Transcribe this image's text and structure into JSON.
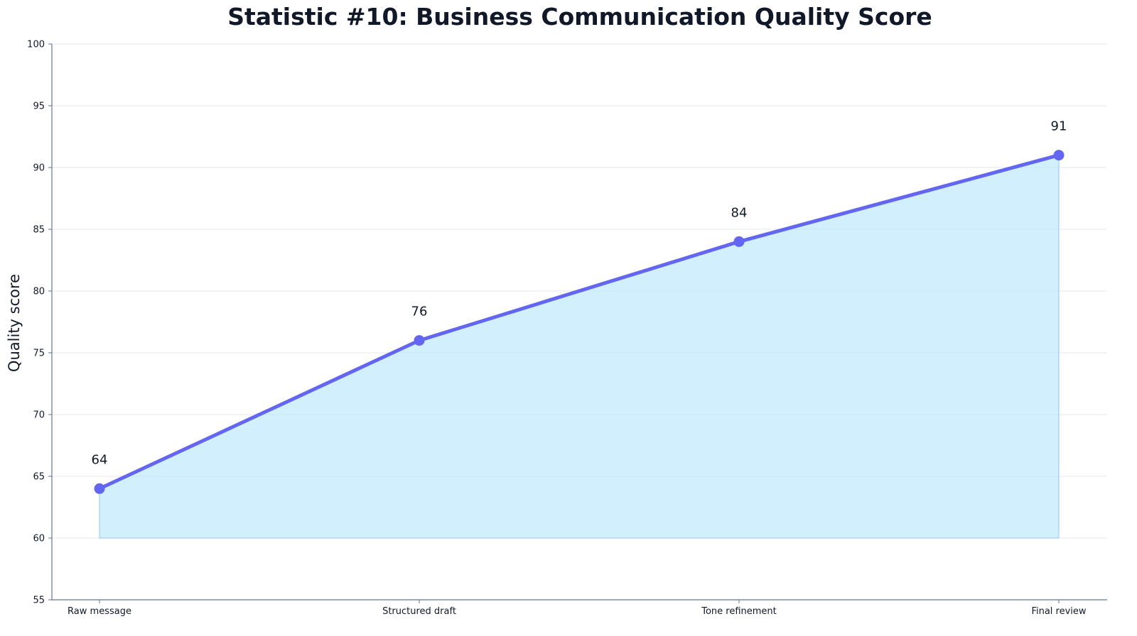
{
  "chart_data": {
    "type": "line",
    "title": "Statistic #10: Business Communication Quality Score",
    "xlabel": "",
    "ylabel": "Quality score",
    "categories": [
      "Raw message",
      "Structured draft",
      "Tone refinement",
      "Final review"
    ],
    "series": [
      {
        "values": [
          64,
          76,
          84,
          91
        ]
      }
    ],
    "area_baseline": 60,
    "ylim": [
      55,
      100
    ],
    "yticks": [
      55,
      60,
      65,
      70,
      75,
      80,
      85,
      90,
      95,
      100
    ],
    "data_labels": [
      "64",
      "76",
      "84",
      "91"
    ],
    "grid": true,
    "legend": "none",
    "colors": {
      "line": "#6366f1",
      "area_fill": "#bae6fd",
      "area_edge": "#93c5fd",
      "grid": "#e5e7eb",
      "axis": "#64748b",
      "text": "#111827"
    }
  }
}
